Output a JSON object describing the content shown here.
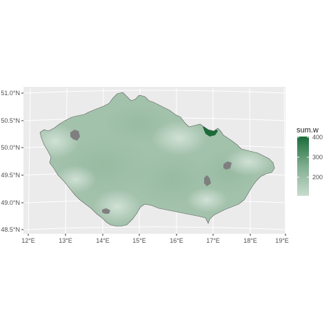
{
  "map": {
    "type": "choropleth",
    "region": "Czech Republic",
    "x_ticks": [
      "12°E",
      "13°E",
      "14°E",
      "15°E",
      "16°E",
      "17°E",
      "18°E",
      "19°E"
    ],
    "y_ticks": [
      "48.5°N",
      "49.0°N",
      "49.5°N",
      "50.0°N",
      "50.5°N",
      "51.0°N"
    ],
    "fill_low": "#c9dccf",
    "fill_high": "#1b6b3a",
    "na_color": "#7f7f7f",
    "panel_background": "#ebebeb",
    "grid_color": "#ffffff",
    "legend": {
      "title": "sum.w",
      "breaks": [
        "200",
        "300",
        "400"
      ],
      "range": [
        120,
        400
      ],
      "placement": "right"
    }
  }
}
